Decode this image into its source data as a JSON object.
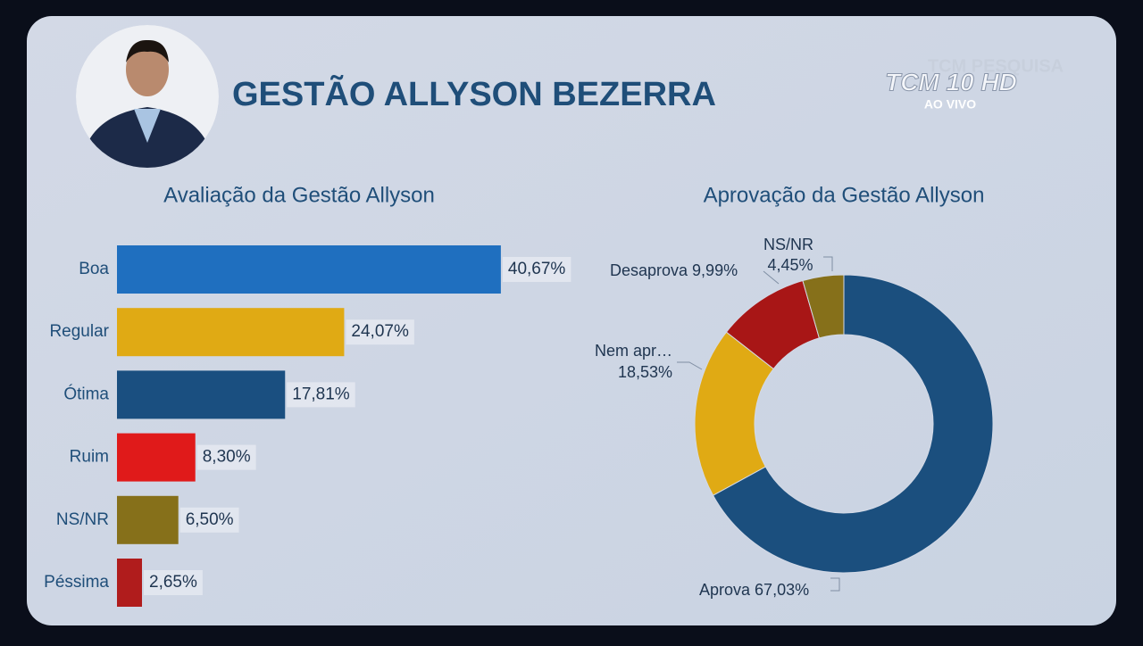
{
  "header": {
    "title": "GESTÃO ALLYSON BEZERRA"
  },
  "logo": {
    "brand": "TCM PESQUISA",
    "channel": "TCM 10 HD",
    "status": "AO VIVO"
  },
  "chart_data": [
    {
      "type": "hbar",
      "title": "Avaliação da Gestão Allyson",
      "categories": [
        "Boa",
        "Regular",
        "Ótima",
        "Ruim",
        "NS/NR",
        "Péssima"
      ],
      "values": [
        40.67,
        24.07,
        17.81,
        8.3,
        6.5,
        2.65
      ],
      "value_labels": [
        "40,67%",
        "24,07%",
        "17,81%",
        "8,30%",
        "6,50%",
        "2,65%"
      ],
      "colors": [
        "#1f6fbf",
        "#e0aa14",
        "#1a4f80",
        "#e01a1a",
        "#86701a",
        "#b01c1c"
      ]
    },
    {
      "type": "donut",
      "title": "Aprovação da Gestão Allyson",
      "categories": [
        "Aprova",
        "Nem apr…",
        "Desaprova",
        "NS/NR"
      ],
      "values": [
        67.03,
        18.53,
        9.99,
        4.45
      ],
      "value_labels": [
        "67,03%",
        "18,53%",
        "9,99%",
        "4,45%"
      ],
      "colors": [
        "#1b4f7e",
        "#e0aa14",
        "#a81616",
        "#86701a"
      ]
    }
  ]
}
